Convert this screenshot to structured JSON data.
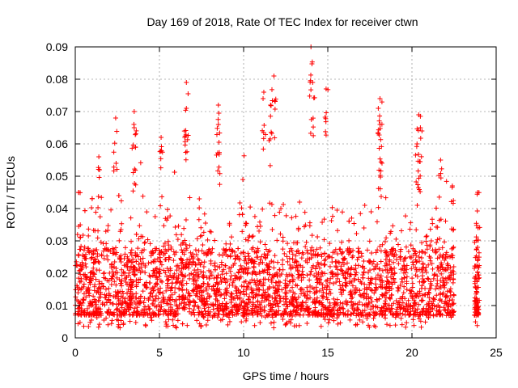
{
  "chart_data": {
    "type": "scatter",
    "title": "Day 169 of 2018, Rate Of TEC Index for receiver ctwn",
    "xlabel": "GPS time / hours",
    "ylabel": "ROTI / TECUs",
    "xlim": [
      0,
      25
    ],
    "ylim": [
      0,
      0.09
    ],
    "x_ticks": [
      0,
      5,
      10,
      15,
      20,
      25
    ],
    "y_ticks": [
      0,
      0.01,
      0.02,
      0.03,
      0.04,
      0.05,
      0.06,
      0.07,
      0.08,
      0.09
    ],
    "grid": true,
    "marker": "+",
    "series": [
      {
        "name": "ROTI",
        "color": "#ff0000",
        "data_range_hours": [
          0,
          22.5
        ],
        "late_segment_hours": [
          23.7,
          24.0
        ],
        "typical_band": [
          0.007,
          0.025
        ],
        "notable_points": [
          {
            "x": 0.2,
            "y": 0.045
          },
          {
            "x": 1.4,
            "y": 0.056
          },
          {
            "x": 2.4,
            "y": 0.068
          },
          {
            "x": 3.5,
            "y": 0.07
          },
          {
            "x": 3.5,
            "y": 0.065
          },
          {
            "x": 5.1,
            "y": 0.062
          },
          {
            "x": 6.6,
            "y": 0.079
          },
          {
            "x": 6.6,
            "y": 0.071
          },
          {
            "x": 8.5,
            "y": 0.072
          },
          {
            "x": 8.5,
            "y": 0.066
          },
          {
            "x": 11.8,
            "y": 0.081
          },
          {
            "x": 11.2,
            "y": 0.076
          },
          {
            "x": 11.6,
            "y": 0.072
          },
          {
            "x": 14.0,
            "y": 0.09
          },
          {
            "x": 14.1,
            "y": 0.079
          },
          {
            "x": 14.9,
            "y": 0.077
          },
          {
            "x": 18.1,
            "y": 0.074
          },
          {
            "x": 18.0,
            "y": 0.071
          },
          {
            "x": 18.1,
            "y": 0.066
          },
          {
            "x": 20.4,
            "y": 0.069
          },
          {
            "x": 20.5,
            "y": 0.065
          },
          {
            "x": 20.3,
            "y": 0.06
          },
          {
            "x": 21.7,
            "y": 0.055
          },
          {
            "x": 22.4,
            "y": 0.047
          },
          {
            "x": 23.9,
            "y": 0.045
          }
        ]
      }
    ]
  }
}
